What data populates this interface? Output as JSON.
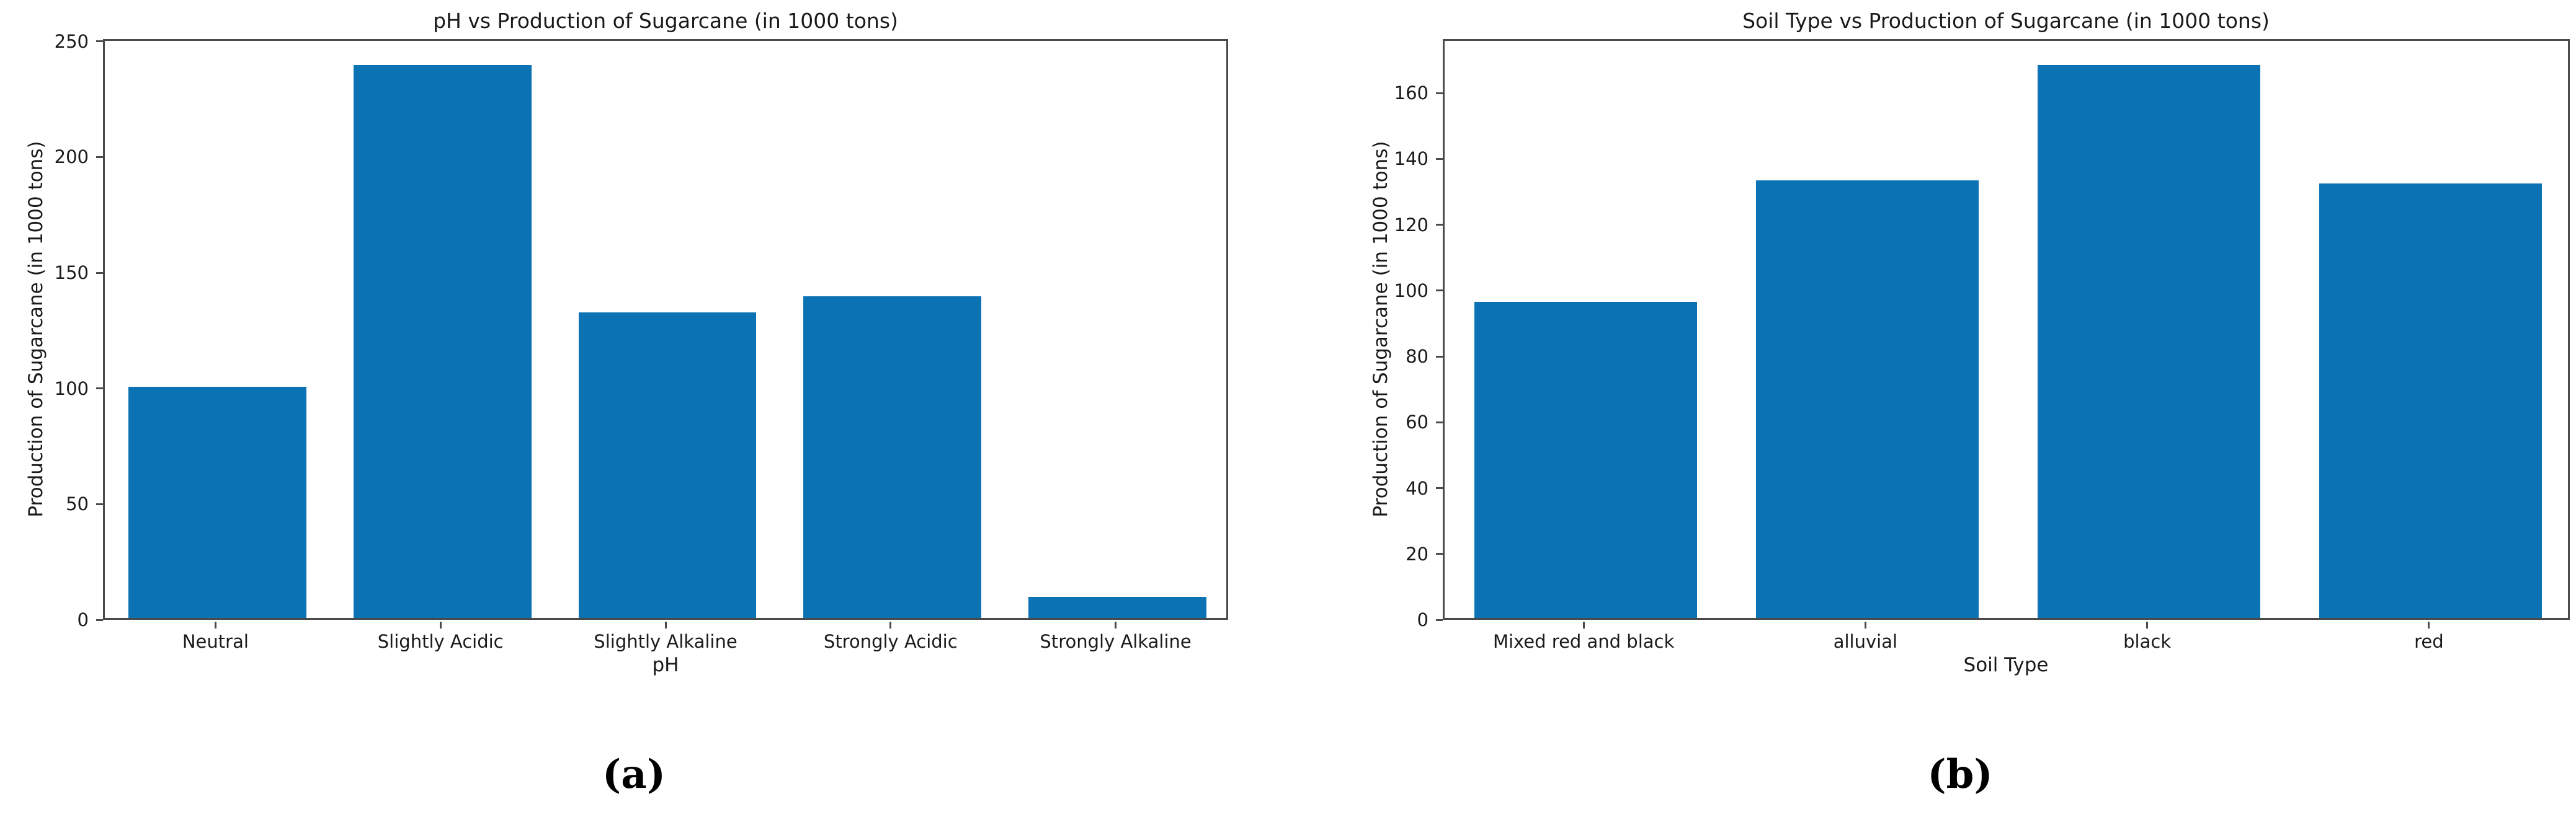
{
  "figure": {
    "background": "#ffffff",
    "caption_a": "(a)",
    "caption_b": "(b)"
  },
  "chart_data": [
    {
      "id": "ph-chart",
      "type": "bar",
      "title": "pH vs Production of Sugarcane (in 1000 tons)",
      "xlabel": "pH",
      "ylabel": "Production of Sugarcane (in 1000 tons)",
      "categories": [
        "Neutral",
        "Slightly Acidic",
        "Slightly Alkaline",
        "Strongly Acidic",
        "Strongly Alkaline"
      ],
      "values": [
        100,
        239,
        132,
        139,
        9
      ],
      "yticks": [
        0,
        50,
        100,
        150,
        200,
        250
      ],
      "ylim": [
        0,
        251
      ],
      "bar_color": "#0b73b4",
      "grid": false,
      "legend": "none",
      "caption": "(a)"
    },
    {
      "id": "soil-chart",
      "type": "bar",
      "title": "Soil Type vs Production of Sugarcane (in 1000 tons)",
      "xlabel": "Soil Type",
      "ylabel": "Production of Sugarcane (in 1000 tons)",
      "categories": [
        "Mixed red and black",
        "alluvial",
        "black",
        "red"
      ],
      "values": [
        96,
        133,
        168,
        132
      ],
      "yticks": [
        0,
        20,
        40,
        60,
        80,
        100,
        120,
        140,
        160
      ],
      "ylim": [
        0,
        176.4
      ],
      "bar_color": "#0b73b4",
      "grid": false,
      "legend": "none",
      "caption": "(b)"
    }
  ]
}
